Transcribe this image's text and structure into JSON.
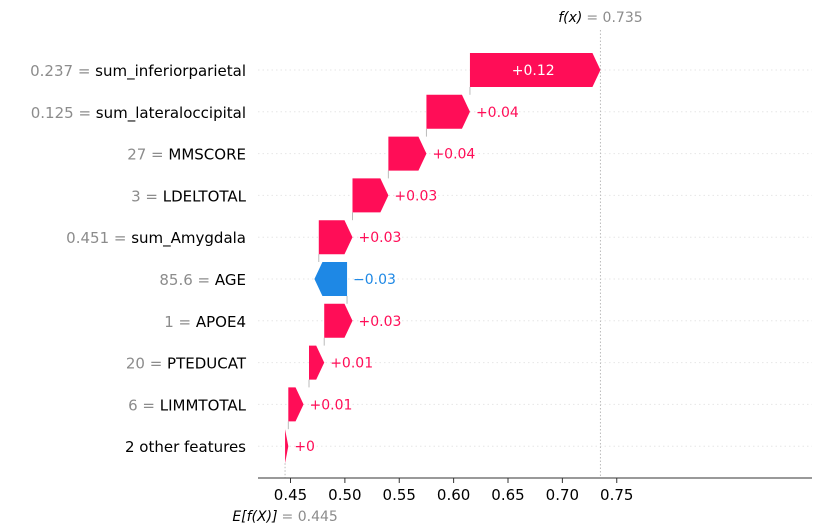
{
  "chart_data": {
    "type": "waterfall",
    "base_value": 0.445,
    "output_value": 0.735,
    "base_label": "E[f(X)]",
    "base_value_text": "= 0.445",
    "output_label": "f(x)",
    "output_value_text": "= 0.735",
    "xlim": [
      0.43,
      0.81
    ],
    "xticks": [
      0.45,
      0.5,
      0.55,
      0.6,
      0.65,
      0.7,
      0.75
    ],
    "xtick_labels": [
      "0.45",
      "0.50",
      "0.55",
      "0.60",
      "0.65",
      "0.70",
      "0.75"
    ],
    "colors": {
      "positive": "#ff0d57",
      "negative": "#1e88e5",
      "value_text": "#8c8c8c",
      "guide": "#cccccc"
    },
    "features": [
      {
        "value": "0.237",
        "name": "sum_inferiorparietal",
        "start": 0.615,
        "shap": 0.12,
        "label": "+0.12"
      },
      {
        "value": "0.125",
        "name": "sum_lateraloccipital",
        "start": 0.575,
        "shap": 0.04,
        "label": "+0.04"
      },
      {
        "value": "27",
        "name": "MMSCORE",
        "start": 0.54,
        "shap": 0.035,
        "label": "+0.04"
      },
      {
        "value": "3",
        "name": "LDELTOTAL",
        "start": 0.507,
        "shap": 0.033,
        "label": "+0.03"
      },
      {
        "value": "0.451",
        "name": "sum_Amygdala",
        "start": 0.476,
        "shap": 0.031,
        "label": "+0.03"
      },
      {
        "value": "85.6",
        "name": "AGE",
        "start": 0.502,
        "shap": -0.03,
        "label": "−0.03"
      },
      {
        "value": "1",
        "name": "APOE4",
        "start": 0.481,
        "shap": 0.026,
        "label": "+0.03"
      },
      {
        "value": "20",
        "name": "PTEDUCAT",
        "start": 0.467,
        "shap": 0.014,
        "label": "+0.01"
      },
      {
        "value": "6",
        "name": "LIMMTOTAL",
        "start": 0.448,
        "shap": 0.014,
        "label": "+0.01"
      },
      {
        "value": "",
        "name": "2 other features",
        "start": 0.445,
        "shap": 0.003,
        "label": "+0"
      }
    ]
  }
}
